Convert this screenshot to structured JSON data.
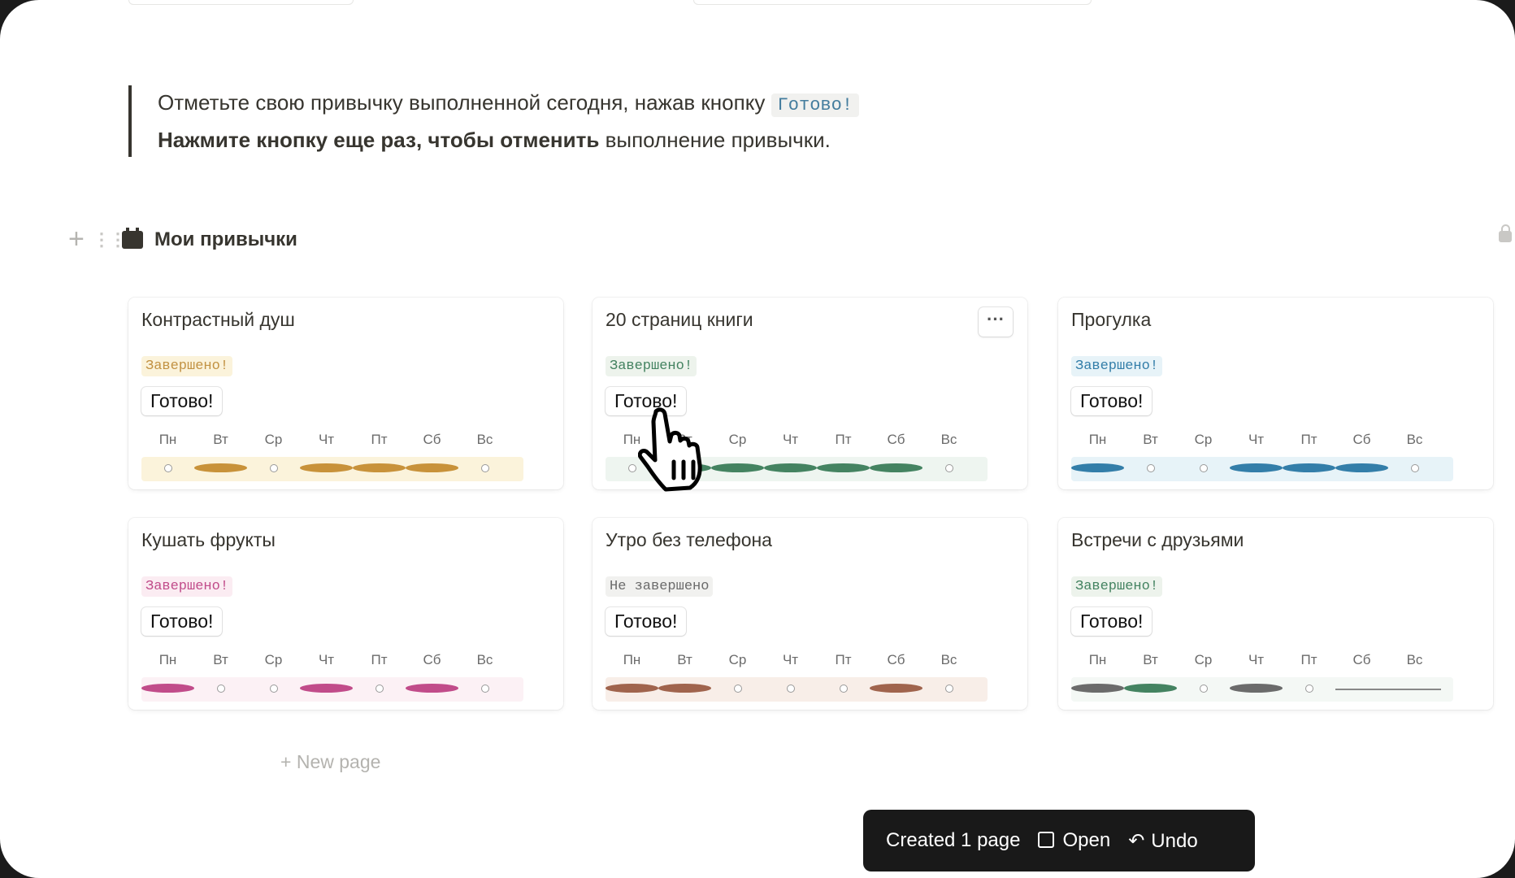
{
  "callout": {
    "line1": "Отметьте свою привычку выполненной сегодня, нажав кнопку",
    "code": "Готово!",
    "line2_bold": "Нажмите кнопку еще раз, чтобы отменить",
    "line2_rest": " выполнение привычки."
  },
  "database": {
    "title": "Мои привычки",
    "icon": "calendar-icon"
  },
  "days": [
    "Пн",
    "Вт",
    "Ср",
    "Чт",
    "Пт",
    "Сб",
    "Вс"
  ],
  "button_label": "Готово!",
  "habits": [
    {
      "title": "Контрастный душ",
      "status": "Завершено!",
      "badge_bg": "#fbf3db",
      "badge_fg": "#c29243",
      "strip": "#fbf3db",
      "dot": "#c8923a",
      "week": [
        "empty",
        "filled",
        "empty",
        "filled",
        "filled",
        "filled",
        "empty"
      ]
    },
    {
      "title": "20 страниц книги",
      "status": "Завершено!",
      "badge_bg": "#edf3ec",
      "badge_fg": "#448361",
      "strip": "#eef5f0",
      "dot": "#448361",
      "week": [
        "empty",
        "filled",
        "filled",
        "filled",
        "filled",
        "filled",
        "empty"
      ],
      "more": true
    },
    {
      "title": "Прогулка",
      "status": "Завершено!",
      "badge_bg": "#e7f3f8",
      "badge_fg": "#337ea9",
      "strip": "#e7f3f8",
      "dot": "#337ea9",
      "week": [
        "filled",
        "empty",
        "empty",
        "filled",
        "filled",
        "filled",
        "empty"
      ]
    },
    {
      "title": "Кушать фрукты",
      "status": "Завершено!",
      "badge_bg": "#fbecf2",
      "badge_fg": "#c14c8a",
      "strip": "#fcf1f5",
      "dot": "#c14c8a",
      "week": [
        "filled",
        "empty",
        "empty",
        "filled",
        "empty",
        "filled",
        "empty"
      ]
    },
    {
      "title": "Утро без телефона",
      "status": "Не завершено",
      "badge_bg": "#f1f1ef",
      "badge_fg": "#6b6b6b",
      "strip": "#f8eee8",
      "dot": "#a0644d",
      "week": [
        "filled",
        "filled",
        "empty",
        "empty",
        "empty",
        "filled",
        "empty"
      ]
    },
    {
      "title": "Встречи с друзьями",
      "status": "Завершено!",
      "badge_bg": "#edf3ec",
      "badge_fg": "#448361",
      "strip": "#f4f8f5",
      "dot": "#6b6b6b",
      "week": [
        "filled",
        "filled-green",
        "empty",
        "filled",
        "empty",
        "none",
        "none"
      ]
    }
  ],
  "new_page": "New page",
  "toast": {
    "message": "Created 1 page",
    "open": "Open",
    "undo": "Undo"
  }
}
